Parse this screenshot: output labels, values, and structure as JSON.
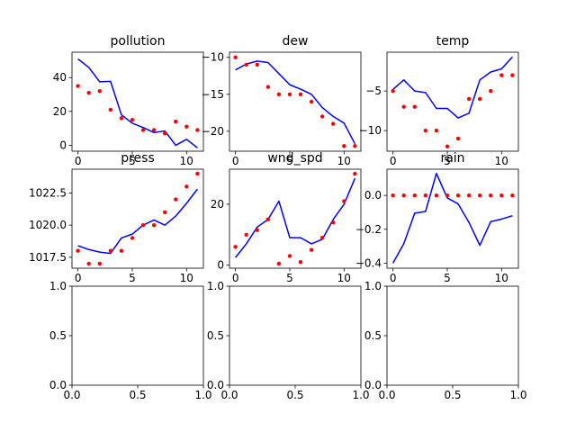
{
  "chart_data": [
    {
      "type": "line",
      "title": "pollution",
      "x": [
        0,
        1,
        2,
        3,
        4,
        5,
        6,
        7,
        8,
        9,
        10,
        11
      ],
      "series": [
        {
          "values": [
            51,
            46,
            37.5,
            37.8,
            18,
            13,
            10.5,
            7.5,
            8.5,
            0,
            3.5,
            -1.5
          ],
          "color": "#0000ff",
          "style": "line"
        },
        {
          "values": [
            35,
            31,
            32,
            21,
            16,
            15,
            9,
            9,
            7,
            14,
            11,
            9
          ],
          "color": "#ff0000",
          "style": "points"
        }
      ],
      "xlim": [
        -0.55,
        11.55
      ],
      "ylim": [
        -3.5,
        55
      ],
      "xticks": [
        0,
        5,
        10
      ],
      "yticks": [
        0,
        20,
        40
      ]
    },
    {
      "type": "line",
      "title": "dew",
      "x": [
        0,
        1,
        2,
        3,
        4,
        5,
        6,
        7,
        8,
        9,
        10,
        11
      ],
      "series": [
        {
          "values": [
            -11.7,
            -10.9,
            -10.5,
            -10.7,
            -12.2,
            -13.7,
            -14.3,
            -15,
            -16.8,
            -18,
            -18.9,
            -21.7
          ],
          "color": "#0000ff",
          "style": "line"
        },
        {
          "values": [
            -10,
            -11,
            -11,
            -14,
            -15,
            -15,
            -15,
            -16,
            -18,
            -19,
            -22,
            -22
          ],
          "color": "#ff0000",
          "style": "points"
        }
      ],
      "xlim": [
        -0.55,
        11.55
      ],
      "ylim": [
        -22.7,
        -9.3
      ],
      "xticks": [
        0,
        5,
        10
      ],
      "yticks": [
        -10,
        -15,
        -20
      ]
    },
    {
      "type": "line",
      "title": "temp",
      "x": [
        0,
        1,
        2,
        3,
        4,
        5,
        6,
        7,
        8,
        9,
        10,
        11
      ],
      "series": [
        {
          "values": [
            -4.8,
            -3.6,
            -5,
            -5.2,
            -7.2,
            -7.2,
            -8.4,
            -7.8,
            -3.6,
            -2.6,
            -2.2,
            -0.7
          ],
          "color": "#0000ff",
          "style": "line"
        },
        {
          "values": [
            -5,
            -7,
            -7,
            -10,
            -10,
            -12,
            -11,
            -6,
            -6,
            -5,
            -3,
            -3
          ],
          "color": "#ff0000",
          "style": "points"
        }
      ],
      "xlim": [
        -0.55,
        11.55
      ],
      "ylim": [
        -12.6,
        -0.1
      ],
      "xticks": [
        0,
        5,
        10
      ],
      "yticks": [
        -5,
        -10
      ]
    },
    {
      "type": "line",
      "title": "press",
      "x": [
        0,
        1,
        2,
        3,
        4,
        5,
        6,
        7,
        8,
        9,
        10,
        11
      ],
      "series": [
        {
          "values": [
            1018.4,
            1018.1,
            1017.9,
            1017.8,
            1019,
            1019.3,
            1020,
            1020.4,
            1020,
            1020.7,
            1021.7,
            1022.8
          ],
          "color": "#0000ff",
          "style": "line"
        },
        {
          "values": [
            1018,
            1017,
            1017,
            1018,
            1018,
            1019,
            1020,
            1020,
            1021,
            1022,
            1023,
            1024
          ],
          "color": "#ff0000",
          "style": "points"
        }
      ],
      "xlim": [
        -0.55,
        11.55
      ],
      "ylim": [
        1016.65,
        1024.35
      ],
      "xticks": [
        0,
        5,
        10
      ],
      "yticks": [
        1017.5,
        1020.0,
        1022.5
      ],
      "ytick_labels": [
        "1017.5",
        "1020.0",
        "1022.5"
      ]
    },
    {
      "type": "line",
      "title": "wnd_spd",
      "x": [
        0,
        1,
        2,
        3,
        4,
        5,
        6,
        7,
        8,
        9,
        10,
        11
      ],
      "series": [
        {
          "values": [
            2.5,
            7,
            12.5,
            15,
            21,
            9,
            9,
            7,
            8.5,
            15,
            20,
            28.5
          ],
          "color": "#0000ff",
          "style": "line"
        },
        {
          "values": [
            6,
            10,
            11.5,
            15,
            0.5,
            3,
            1,
            5,
            9,
            14,
            21,
            30
          ],
          "color": "#ff0000",
          "style": "points"
        }
      ],
      "xlim": [
        -0.55,
        11.55
      ],
      "ylim": [
        -1,
        31.5
      ],
      "xticks": [
        0,
        5,
        10
      ],
      "yticks": [
        0,
        20
      ]
    },
    {
      "type": "line",
      "title": "rain",
      "x": [
        0,
        1,
        2,
        3,
        4,
        5,
        6,
        7,
        8,
        9,
        10,
        11
      ],
      "series": [
        {
          "values": [
            -0.4,
            -0.285,
            -0.105,
            -0.095,
            0.13,
            -0.015,
            -0.05,
            -0.16,
            -0.295,
            -0.155,
            -0.14,
            -0.12
          ],
          "color": "#0000ff",
          "style": "line"
        },
        {
          "values": [
            0,
            0,
            0,
            0,
            0,
            0,
            0,
            0,
            0,
            0,
            0,
            0
          ],
          "color": "#ff0000",
          "style": "points"
        }
      ],
      "xlim": [
        -0.55,
        11.55
      ],
      "ylim": [
        -0.43,
        0.155
      ],
      "xticks": [
        0,
        5,
        10
      ],
      "yticks": [
        0,
        -0.2,
        -0.4
      ],
      "ytick_labels": [
        "0.0",
        "−0.2",
        "−0.4"
      ]
    },
    {
      "type": "line",
      "title": "",
      "x": [],
      "series": [],
      "xlim": [
        0,
        1
      ],
      "ylim": [
        0,
        1
      ],
      "xticks": [
        0,
        0.5,
        1
      ],
      "yticks": [
        0,
        0.5,
        1
      ],
      "xtick_labels": [
        "0.0",
        "0.5",
        "1.0"
      ],
      "ytick_labels": [
        "0.0",
        "0.5",
        "1.0"
      ]
    },
    {
      "type": "line",
      "title": "",
      "x": [],
      "series": [],
      "xlim": [
        0,
        1
      ],
      "ylim": [
        0,
        1
      ],
      "xticks": [
        0,
        0.5,
        1
      ],
      "yticks": [
        0,
        0.5,
        1
      ],
      "xtick_labels": [
        "0.0",
        "0.5",
        "1.0"
      ],
      "ytick_labels": [
        "0.0",
        "0.5",
        "1.0"
      ]
    },
    {
      "type": "line",
      "title": "",
      "x": [],
      "series": [],
      "xlim": [
        0,
        1
      ],
      "ylim": [
        0,
        1
      ],
      "xticks": [
        0,
        0.5,
        1
      ],
      "yticks": [
        0,
        0.5,
        1
      ],
      "xtick_labels": [
        "0.0",
        "0.5",
        "1.0"
      ],
      "ytick_labels": [
        "0.0",
        "0.5",
        "1.0"
      ]
    }
  ]
}
